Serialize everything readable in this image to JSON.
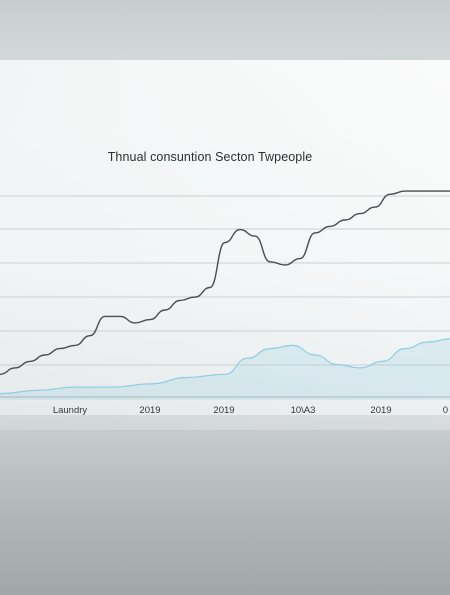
{
  "chart_data": {
    "type": "line",
    "title": "Thnual consuntion Secton Twpeople",
    "xlabel": "",
    "ylabel": "",
    "categories": [
      "",
      "Laundry",
      "2019",
      "2019",
      "10\\A3",
      "2019",
      "0"
    ],
    "grid": true,
    "legend": "none",
    "ylim": [
      0,
      7
    ],
    "series": [
      {
        "color": "#4a4d50",
        "x": [
          0,
          0.2,
          0.4,
          0.6,
          0.8,
          1.0,
          1.2,
          1.4,
          1.6,
          1.8,
          2.0,
          2.2,
          2.4,
          2.6,
          2.8,
          3.0,
          3.2,
          3.4,
          3.6,
          3.8,
          4.0,
          4.2,
          4.4,
          4.6,
          4.8,
          5.0,
          5.2,
          5.4,
          5.6,
          5.8,
          6.0
        ],
        "values": [
          0.8,
          1.0,
          1.2,
          1.4,
          1.6,
          1.7,
          2.0,
          2.6,
          2.6,
          2.4,
          2.5,
          2.8,
          3.1,
          3.2,
          3.5,
          4.9,
          5.3,
          5.1,
          4.3,
          4.2,
          4.4,
          5.2,
          5.4,
          5.6,
          5.8,
          6.0,
          6.4,
          6.5,
          6.5,
          6.5,
          6.5
        ]
      },
      {
        "color": "#8fcde4",
        "fill": true,
        "x": [
          0,
          0.5,
          1.0,
          1.5,
          2.0,
          2.5,
          3.0,
          3.3,
          3.6,
          3.9,
          4.2,
          4.5,
          4.8,
          5.1,
          5.4,
          5.7,
          6.0
        ],
        "values": [
          0.2,
          0.3,
          0.4,
          0.4,
          0.5,
          0.7,
          0.8,
          1.3,
          1.6,
          1.7,
          1.4,
          1.1,
          1.0,
          1.2,
          1.6,
          1.8,
          1.9
        ]
      }
    ]
  }
}
